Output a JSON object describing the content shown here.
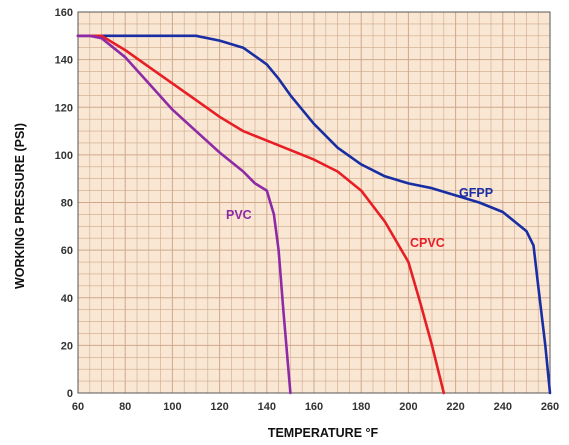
{
  "chart_data": {
    "type": "line",
    "xlabel": "TEMPERATURE °F",
    "ylabel": "WORKING PRESSURE (PSI)",
    "xlim": [
      60,
      260
    ],
    "ylim": [
      0,
      160
    ],
    "x_ticks": [
      60,
      80,
      100,
      120,
      140,
      160,
      180,
      200,
      220,
      240,
      260
    ],
    "y_ticks": [
      0,
      20,
      40,
      60,
      80,
      100,
      120,
      140,
      160
    ],
    "grid": true,
    "background": "#f9e7d4",
    "grid_color": "#cfa88c",
    "series": [
      {
        "name": "GFPP",
        "color": "#1a2ea3",
        "x": [
          60,
          70,
          80,
          90,
          100,
          110,
          120,
          130,
          140,
          145,
          150,
          160,
          170,
          180,
          190,
          200,
          210,
          220,
          230,
          240,
          250,
          253,
          255,
          258,
          260
        ],
        "y": [
          150,
          150,
          150,
          150,
          150,
          150,
          148,
          145,
          138,
          132,
          125,
          113,
          103,
          96,
          91,
          88,
          86,
          83,
          80,
          76,
          68,
          62,
          45,
          20,
          0
        ]
      },
      {
        "name": "CPVC",
        "color": "#e81e25",
        "x": [
          60,
          70,
          80,
          90,
          100,
          110,
          120,
          130,
          140,
          150,
          160,
          170,
          180,
          190,
          200,
          205,
          210,
          215
        ],
        "y": [
          150,
          150,
          144,
          137,
          130,
          123,
          116,
          110,
          106,
          102,
          98,
          93,
          85,
          72,
          55,
          38,
          20,
          0
        ]
      },
      {
        "name": "PVC",
        "color": "#8e2aa6",
        "x": [
          60,
          65,
          70,
          80,
          90,
          100,
          110,
          120,
          130,
          135,
          140,
          143,
          145,
          147,
          150
        ],
        "y": [
          150,
          150,
          149,
          141,
          130,
          119,
          110,
          101,
          93,
          88,
          85,
          75,
          60,
          35,
          0
        ]
      }
    ]
  }
}
